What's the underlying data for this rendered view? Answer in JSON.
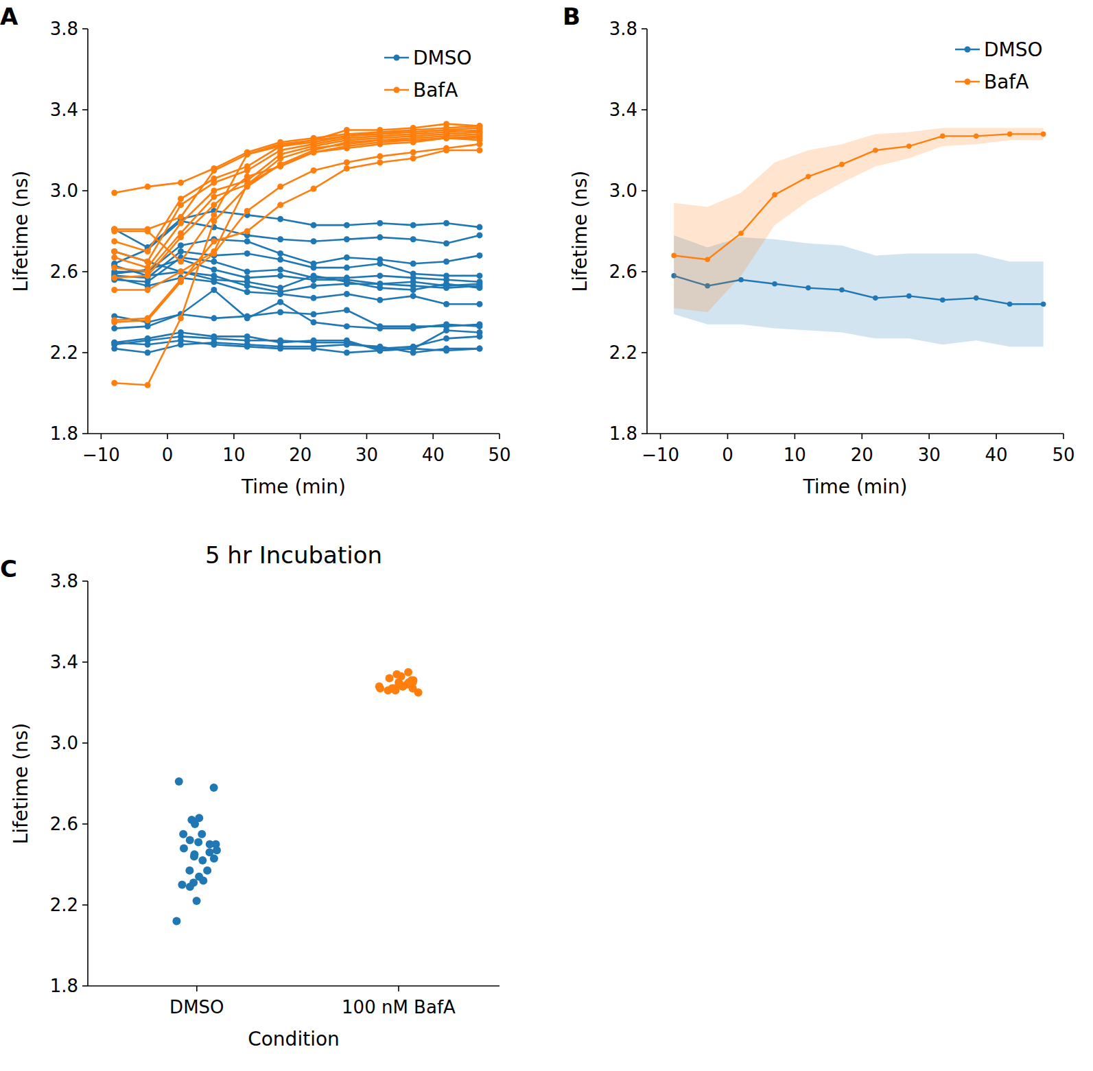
{
  "chart_data": [
    {
      "type": "line",
      "panel_label": "A",
      "xlabel": "Time (min)",
      "ylabel": "Lifetime (ns)",
      "legend": "upper right",
      "marker": "circle",
      "x": [
        -8,
        -3,
        2,
        7,
        12,
        17,
        22,
        27,
        32,
        37,
        42,
        47
      ],
      "xlim": [
        -12,
        50
      ],
      "xticks": [
        {
          "value": -10,
          "label": "−10"
        },
        0,
        10,
        20,
        30,
        40,
        50
      ],
      "ylim": [
        1.8,
        3.8
      ],
      "yticks": [
        1.8,
        2.2,
        2.6,
        {
          "value": 3,
          "label": "3.0"
        },
        3.4,
        3.8
      ],
      "series": [
        {
          "name": "DMSO",
          "color": "#1f77b4",
          "values": [
            [
              2.81,
              2.72,
              2.86,
              2.9,
              2.88,
              2.86,
              2.83,
              2.83,
              2.84,
              2.83,
              2.84,
              2.82
            ],
            [
              2.64,
              2.71,
              2.85,
              2.82,
              2.78,
              2.76,
              2.75,
              2.76,
              2.77,
              2.76,
              2.74,
              2.78
            ],
            [
              2.6,
              2.6,
              2.73,
              2.76,
              2.75,
              2.69,
              2.64,
              2.67,
              2.66,
              2.64,
              2.65,
              2.68
            ],
            [
              2.58,
              2.57,
              2.7,
              2.68,
              2.69,
              2.66,
              2.62,
              2.62,
              2.64,
              2.59,
              2.58,
              2.58
            ],
            [
              2.56,
              2.55,
              2.67,
              2.65,
              2.6,
              2.61,
              2.57,
              2.57,
              2.58,
              2.57,
              2.56,
              2.55
            ],
            [
              2.59,
              2.61,
              2.66,
              2.61,
              2.57,
              2.58,
              2.56,
              2.56,
              2.54,
              2.55,
              2.53,
              2.54
            ],
            [
              2.63,
              2.58,
              2.6,
              2.58,
              2.53,
              2.5,
              2.53,
              2.54,
              2.54,
              2.53,
              2.52,
              2.53
            ],
            [
              2.57,
              2.53,
              2.57,
              2.55,
              2.5,
              2.49,
              2.47,
              2.49,
              2.46,
              2.48,
              2.44,
              2.44
            ],
            [
              2.7,
              2.65,
              2.6,
              2.56,
              2.55,
              2.52,
              2.58,
              2.55,
              2.52,
              2.51,
              2.54,
              2.52
            ],
            [
              2.38,
              2.35,
              2.39,
              2.37,
              2.38,
              2.4,
              2.39,
              2.41,
              2.33,
              2.33,
              2.33,
              2.34
            ],
            [
              2.32,
              2.33,
              2.39,
              2.51,
              2.37,
              2.45,
              2.35,
              2.33,
              2.32,
              2.32,
              2.34,
              2.33
            ],
            [
              2.25,
              2.27,
              2.3,
              2.28,
              2.28,
              2.25,
              2.26,
              2.26,
              2.21,
              2.22,
              2.31,
              2.3
            ],
            [
              2.24,
              2.26,
              2.28,
              2.27,
              2.26,
              2.26,
              2.25,
              2.25,
              2.22,
              2.23,
              2.27,
              2.28
            ],
            [
              2.22,
              2.2,
              2.24,
              2.25,
              2.24,
              2.23,
              2.23,
              2.24,
              2.23,
              2.2,
              2.22,
              2.22
            ],
            [
              2.25,
              2.24,
              2.26,
              2.24,
              2.23,
              2.22,
              2.22,
              2.2,
              2.21,
              2.22,
              2.21,
              2.22
            ]
          ]
        },
        {
          "name": "BafA",
          "color": "#ff7f0e",
          "values": [
            [
              2.99,
              3.02,
              3.04,
              3.11,
              3.19,
              3.24,
              3.26,
              3.28,
              3.29,
              3.3,
              3.31,
              3.32
            ],
            [
              2.81,
              2.81,
              2.87,
              3.1,
              3.18,
              3.22,
              3.25,
              3.3,
              3.3,
              3.31,
              3.33,
              3.32
            ],
            [
              2.75,
              2.7,
              2.96,
              3.06,
              3.12,
              3.22,
              3.24,
              3.27,
              3.29,
              3.29,
              3.3,
              3.31
            ],
            [
              2.7,
              2.65,
              2.93,
              3.04,
              3.1,
              3.2,
              3.23,
              3.26,
              3.27,
              3.28,
              3.29,
              3.3
            ],
            [
              2.67,
              2.62,
              2.84,
              3.0,
              3.05,
              3.18,
              3.22,
              3.25,
              3.26,
              3.27,
              3.28,
              3.29
            ],
            [
              2.62,
              2.6,
              2.79,
              2.97,
              3.03,
              3.13,
              3.2,
              3.24,
              3.25,
              3.26,
              3.27,
              3.28
            ],
            [
              2.57,
              2.58,
              2.77,
              2.93,
              3.07,
              3.12,
              3.19,
              3.22,
              3.24,
              3.25,
              3.26,
              3.27
            ],
            [
              2.51,
              2.51,
              2.6,
              2.7,
              3.03,
              3.16,
              3.21,
              3.23,
              3.25,
              3.25,
              3.26,
              3.26
            ],
            [
              2.36,
              2.37,
              2.56,
              2.69,
              2.9,
              3.02,
              3.1,
              3.14,
              3.17,
              3.19,
              3.21,
              3.23
            ],
            [
              2.35,
              2.36,
              2.55,
              2.75,
              2.8,
              2.93,
              3.01,
              3.11,
              3.14,
              3.16,
              3.2,
              3.2
            ],
            [
              2.05,
              2.04,
              2.37,
              2.85,
              3.02,
              3.13,
              3.19,
              3.21,
              3.23,
              3.24,
              3.26,
              3.25
            ],
            [
              2.8,
              2.8,
              2.65,
              2.88,
              3.18,
              3.23,
              3.25,
              3.27,
              3.28,
              3.29,
              3.3,
              3.29
            ]
          ]
        }
      ]
    },
    {
      "type": "line",
      "panel_label": "B",
      "xlabel": "Time (min)",
      "ylabel": "Lifetime (ns)",
      "legend": "upper right",
      "marker": "circle",
      "x": [
        -8,
        -3,
        2,
        7,
        12,
        17,
        22,
        27,
        32,
        37,
        42,
        47
      ],
      "xlim": [
        -12,
        50
      ],
      "xticks": [
        {
          "value": -10,
          "label": "−10"
        },
        0,
        10,
        20,
        30,
        40,
        50
      ],
      "ylim": [
        1.8,
        3.8
      ],
      "yticks": [
        1.8,
        2.2,
        2.6,
        {
          "value": 3,
          "label": "3.0"
        },
        3.4,
        3.8
      ],
      "series": [
        {
          "name": "DMSO",
          "color": "#1f77b4",
          "values": [
            2.58,
            2.53,
            2.56,
            2.54,
            2.52,
            2.51,
            2.47,
            2.48,
            2.46,
            2.47,
            2.44,
            2.44
          ],
          "lower": [
            2.39,
            2.34,
            2.34,
            2.32,
            2.31,
            2.3,
            2.27,
            2.27,
            2.24,
            2.26,
            2.23,
            2.23
          ],
          "upper": [
            2.78,
            2.72,
            2.77,
            2.76,
            2.74,
            2.73,
            2.68,
            2.69,
            2.69,
            2.69,
            2.65,
            2.65
          ]
        },
        {
          "name": "BafA",
          "color": "#ff7f0e",
          "values": [
            2.68,
            2.66,
            2.79,
            2.98,
            3.07,
            3.13,
            3.2,
            3.22,
            3.27,
            3.27,
            3.28,
            3.28
          ],
          "lower": [
            2.42,
            2.4,
            2.58,
            2.83,
            2.95,
            3.04,
            3.12,
            3.16,
            3.22,
            3.23,
            3.25,
            3.25
          ],
          "upper": [
            2.94,
            2.92,
            2.99,
            3.14,
            3.2,
            3.23,
            3.28,
            3.29,
            3.31,
            3.31,
            3.31,
            3.31
          ]
        }
      ]
    },
    {
      "type": "strip",
      "panel_label": "C",
      "title": "5 hr Incubation",
      "xlabel": "Condition",
      "ylabel": "Lifetime (ns)",
      "categories": [
        "DMSO",
        "100 nM BafA"
      ],
      "colors": [
        "#1f77b4",
        "#ff7f0e"
      ],
      "ylim": [
        1.8,
        3.8
      ],
      "yticks": [
        1.8,
        2.2,
        2.6,
        {
          "value": 3,
          "label": "3.0"
        },
        3.4,
        3.8
      ],
      "values": [
        [
          2.78,
          2.81,
          2.63,
          2.62,
          2.6,
          2.55,
          2.55,
          2.52,
          2.51,
          2.5,
          2.5,
          2.48,
          2.47,
          2.46,
          2.45,
          2.43,
          2.44,
          2.42,
          2.37,
          2.37,
          2.34,
          2.32,
          2.31,
          2.3,
          2.29,
          2.22,
          2.12
        ],
        [
          3.35,
          3.33,
          3.34,
          3.32,
          3.31,
          3.3,
          3.3,
          3.29,
          3.29,
          3.28,
          3.28,
          3.28,
          3.27,
          3.27,
          3.27,
          3.26,
          3.26,
          3.25,
          3.29,
          3.31,
          3.3,
          3.27
        ]
      ]
    }
  ]
}
